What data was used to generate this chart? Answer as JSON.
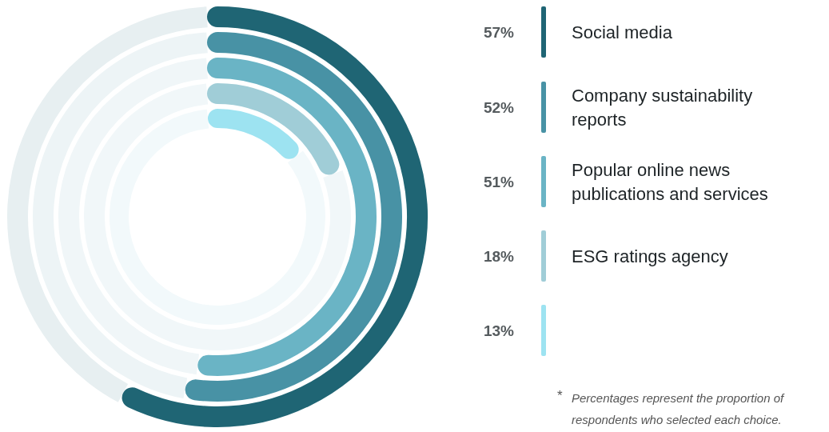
{
  "chart_data": {
    "type": "other",
    "categories": [
      "Social media",
      "Company sustainability reports",
      "Popular online news publications and services",
      "ESG ratings agency",
      null
    ],
    "values": [
      57,
      52,
      51,
      18,
      13
    ],
    "value_labels": [
      "57%",
      "52%",
      "51%",
      "18%",
      "13%"
    ],
    "colors": [
      "#1f6574",
      "#4892a5",
      "#6ab4c5",
      "#a0cdd7",
      "#9de3f1"
    ],
    "annotations": [
      "* Percentages represent the proportion of respondents who selected each choice."
    ]
  }
}
